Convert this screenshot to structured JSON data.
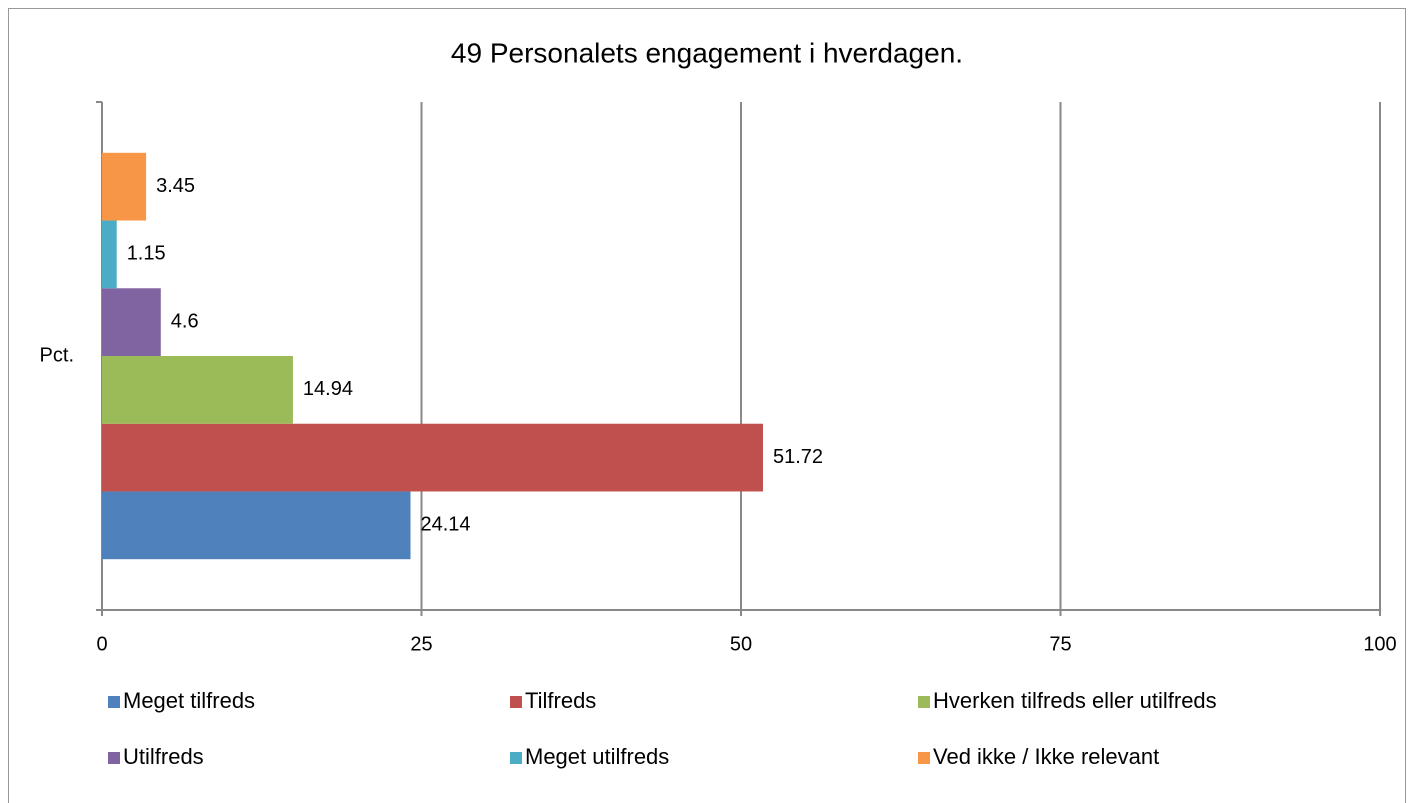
{
  "chart_data": {
    "type": "bar",
    "orientation": "horizontal",
    "title": "49 Personalets engagement i hverdagen.",
    "categories": [
      "Pct."
    ],
    "series": [
      {
        "name": "Meget tilfreds",
        "color": "#4f81bd",
        "values": [
          24.14
        ]
      },
      {
        "name": "Tilfreds",
        "color": "#c0504d",
        "values": [
          51.72
        ]
      },
      {
        "name": "Hverken tilfreds eller utilfreds",
        "color": "#9bbb59",
        "values": [
          14.94
        ]
      },
      {
        "name": "Utilfreds",
        "color": "#8064a2",
        "values": [
          4.6
        ]
      },
      {
        "name": "Meget utilfreds",
        "color": "#4bacc6",
        "values": [
          1.15
        ]
      },
      {
        "name": "Ved ikke / Ikke relevant",
        "color": "#f79646",
        "values": [
          3.45
        ]
      }
    ],
    "xlim": [
      0,
      100
    ],
    "xticks": [
      0,
      25,
      50,
      75,
      100
    ],
    "grid": true,
    "legend": "bottom"
  }
}
